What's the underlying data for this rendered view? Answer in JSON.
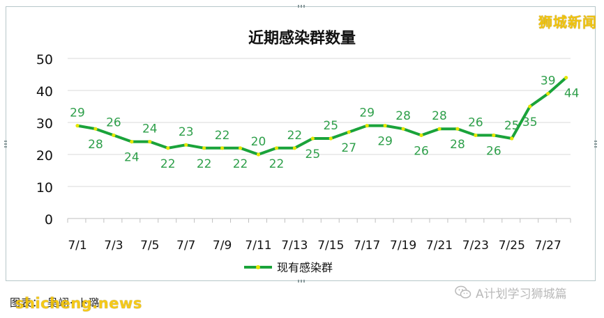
{
  "brand_watermark": "狮城新闻",
  "site_watermark": "shicheng.news",
  "caption": "图表：  吴翊· 卜璐",
  "wechat_account": "A计划学习狮城篇",
  "colors": {
    "line": "#1aa33a",
    "marker": "#e6e600",
    "label": "#2e9f4a",
    "grid": "#d9d9d9",
    "brand": "#f1c40f"
  },
  "chart_data": {
    "type": "line",
    "title": "近期感染群数量",
    "xlabel": "",
    "ylabel": "",
    "ylim": [
      0,
      50
    ],
    "yticks": [
      0,
      10,
      20,
      30,
      40,
      50
    ],
    "grid": true,
    "legend_position": "bottom",
    "x": [
      "7/1",
      "7/2",
      "7/3",
      "7/4",
      "7/5",
      "7/6",
      "7/7",
      "7/8",
      "7/9",
      "7/10",
      "7/11",
      "7/12",
      "7/13",
      "7/14",
      "7/15",
      "7/16",
      "7/17",
      "7/18",
      "7/19",
      "7/20",
      "7/21",
      "7/22",
      "7/23",
      "7/24",
      "7/25",
      "7/26",
      "7/27",
      "7/28"
    ],
    "x_tick_labels": [
      "7/1",
      "7/3",
      "7/5",
      "7/7",
      "7/9",
      "7/11",
      "7/13",
      "7/15",
      "7/17",
      "7/19",
      "7/21",
      "7/23",
      "7/25",
      "7/27"
    ],
    "series": [
      {
        "name": "现有感染群",
        "values": [
          29,
          28,
          26,
          24,
          24,
          22,
          23,
          22,
          22,
          22,
          20,
          22,
          22,
          25,
          25,
          27,
          29,
          29,
          28,
          26,
          28,
          28,
          26,
          26,
          25,
          35,
          39,
          44
        ]
      }
    ]
  }
}
